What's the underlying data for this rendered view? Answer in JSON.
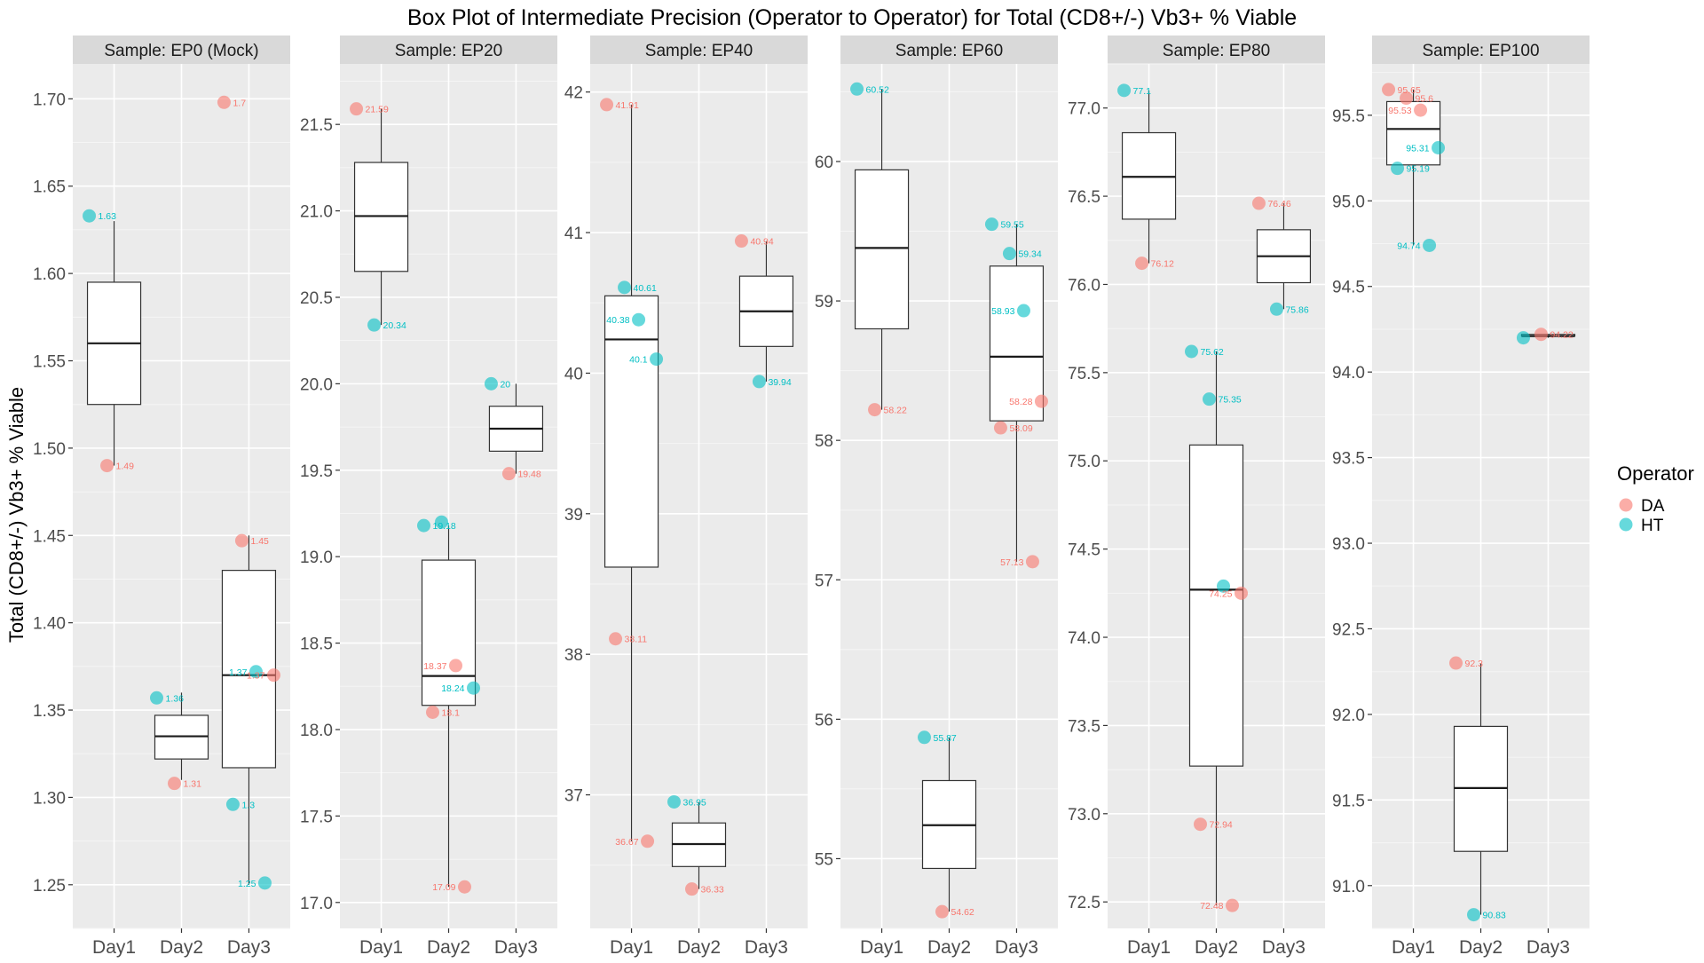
{
  "chart_data": {
    "type": "boxplot",
    "title": "Box Plot of Intermediate Precision (Operator to Operator) for Total (CD8+/-) Vb3+ % Viable",
    "ylabel": "Total (CD8+/-) Vb3+ % Viable",
    "legend": {
      "title": "Operator",
      "placement": "right",
      "entries": [
        {
          "name": "DA",
          "color": "#F8766D"
        },
        {
          "name": "HT",
          "color": "#00BFC4"
        }
      ]
    },
    "categories": [
      "Day1",
      "Day2",
      "Day3"
    ],
    "grid": true,
    "panels": [
      {
        "label": "Sample: EP0 (Mock)",
        "ylim": [
          1.225,
          1.72
        ],
        "yticks": [
          "1.25",
          "1.30",
          "1.35",
          "1.40",
          "1.45",
          "1.50",
          "1.55",
          "1.60",
          "1.65",
          "1.70"
        ],
        "boxes": [
          {
            "x": "Day1",
            "min": 1.49,
            "q1": 1.525,
            "median": 1.56,
            "q3": 1.595,
            "max": 1.63
          },
          {
            "x": "Day2",
            "min": 1.31,
            "q1": 1.322,
            "median": 1.335,
            "q3": 1.347,
            "max": 1.36
          },
          {
            "x": "Day3",
            "min": 1.25,
            "q1": 1.317,
            "median": 1.37,
            "q3": 1.43,
            "max": 1.45
          }
        ],
        "points": [
          {
            "x": "Day1",
            "op": "HT",
            "y": 1.633,
            "label": "1.63"
          },
          {
            "x": "Day1",
            "op": "DA",
            "y": 1.49,
            "label": "1.49"
          },
          {
            "x": "Day2",
            "op": "HT",
            "y": 1.357,
            "label": "1.36"
          },
          {
            "x": "Day2",
            "op": "DA",
            "y": 1.308,
            "label": "1.31"
          },
          {
            "x": "Day3",
            "op": "DA",
            "y": 1.698,
            "label": "1.7"
          },
          {
            "x": "Day3",
            "op": "DA",
            "y": 1.447,
            "label": "1.45"
          },
          {
            "x": "Day3",
            "op": "HT",
            "y": 1.372,
            "label": "1.37"
          },
          {
            "x": "Day3",
            "op": "DA",
            "y": 1.37,
            "label": "1.37"
          },
          {
            "x": "Day3",
            "op": "HT",
            "y": 1.296,
            "label": "1.3"
          },
          {
            "x": "Day3",
            "op": "HT",
            "y": 1.251,
            "label": "1.25"
          }
        ]
      },
      {
        "label": "Sample: EP20",
        "ylim": [
          16.85,
          21.85
        ],
        "yticks": [
          "17.0",
          "17.5",
          "18.0",
          "18.5",
          "19.0",
          "19.5",
          "20.0",
          "20.5",
          "21.0",
          "21.5"
        ],
        "boxes": [
          {
            "x": "Day1",
            "min": 20.34,
            "q1": 20.65,
            "median": 20.97,
            "q3": 21.28,
            "max": 21.59
          },
          {
            "x": "Day2",
            "min": 17.09,
            "q1": 18.14,
            "median": 18.31,
            "q3": 18.98,
            "max": 19.18
          },
          {
            "x": "Day3",
            "min": 19.48,
            "q1": 19.61,
            "median": 19.74,
            "q3": 19.87,
            "max": 20.0
          }
        ],
        "points": [
          {
            "x": "Day1",
            "op": "DA",
            "y": 21.59,
            "label": "21.59"
          },
          {
            "x": "Day1",
            "op": "HT",
            "y": 20.34,
            "label": "20.34"
          },
          {
            "x": "Day2",
            "op": "HT",
            "y": 19.18,
            "label": "19.18"
          },
          {
            "x": "Day2",
            "op": "HT",
            "y": 19.2,
            "label": ""
          },
          {
            "x": "Day2",
            "op": "DA",
            "y": 18.37,
            "label": "18.37"
          },
          {
            "x": "Day2",
            "op": "HT",
            "y": 18.24,
            "label": "18.24"
          },
          {
            "x": "Day2",
            "op": "DA",
            "y": 18.1,
            "label": "18.1"
          },
          {
            "x": "Day2",
            "op": "DA",
            "y": 17.09,
            "label": "17.09"
          },
          {
            "x": "Day3",
            "op": "HT",
            "y": 20.0,
            "label": "20"
          },
          {
            "x": "Day3",
            "op": "DA",
            "y": 19.48,
            "label": "19.48"
          }
        ]
      },
      {
        "label": "Sample: EP40",
        "ylim": [
          36.05,
          42.2
        ],
        "yticks": [
          "37",
          "38",
          "39",
          "40",
          "41",
          "42"
        ],
        "boxes": [
          {
            "x": "Day1",
            "min": 36.67,
            "q1": 38.62,
            "median": 40.24,
            "q3": 40.55,
            "max": 41.91
          },
          {
            "x": "Day2",
            "min": 36.33,
            "q1": 36.49,
            "median": 36.65,
            "q3": 36.8,
            "max": 36.95
          },
          {
            "x": "Day3",
            "min": 39.94,
            "q1": 40.19,
            "median": 40.44,
            "q3": 40.69,
            "max": 40.94
          }
        ],
        "points": [
          {
            "x": "Day1",
            "op": "DA",
            "y": 41.91,
            "label": "41.91"
          },
          {
            "x": "Day1",
            "op": "HT",
            "y": 40.61,
            "label": "40.61"
          },
          {
            "x": "Day1",
            "op": "HT",
            "y": 40.38,
            "label": "40.38"
          },
          {
            "x": "Day1",
            "op": "HT",
            "y": 40.1,
            "label": "40.1"
          },
          {
            "x": "Day1",
            "op": "DA",
            "y": 38.11,
            "label": "38.11"
          },
          {
            "x": "Day1",
            "op": "DA",
            "y": 36.67,
            "label": "36.67"
          },
          {
            "x": "Day2",
            "op": "HT",
            "y": 36.95,
            "label": "36.95"
          },
          {
            "x": "Day2",
            "op": "DA",
            "y": 36.33,
            "label": "36.33"
          },
          {
            "x": "Day3",
            "op": "DA",
            "y": 40.94,
            "label": "40.94"
          },
          {
            "x": "Day3",
            "op": "HT",
            "y": 39.94,
            "label": "39.94"
          }
        ]
      },
      {
        "label": "Sample: EP60",
        "ylim": [
          54.5,
          60.7
        ],
        "yticks": [
          "55",
          "56",
          "57",
          "58",
          "59",
          "60"
        ],
        "boxes": [
          {
            "x": "Day1",
            "min": 58.22,
            "q1": 58.8,
            "median": 59.38,
            "q3": 59.94,
            "max": 60.52
          },
          {
            "x": "Day2",
            "min": 54.62,
            "q1": 54.93,
            "median": 55.24,
            "q3": 55.56,
            "max": 55.87
          },
          {
            "x": "Day3",
            "min": 57.13,
            "q1": 58.14,
            "median": 58.6,
            "q3": 59.25,
            "max": 59.55
          }
        ],
        "points": [
          {
            "x": "Day1",
            "op": "HT",
            "y": 60.52,
            "label": "60.52"
          },
          {
            "x": "Day1",
            "op": "DA",
            "y": 58.22,
            "label": "58.22"
          },
          {
            "x": "Day2",
            "op": "HT",
            "y": 55.87,
            "label": "55.87"
          },
          {
            "x": "Day2",
            "op": "DA",
            "y": 54.62,
            "label": "54.62"
          },
          {
            "x": "Day3",
            "op": "HT",
            "y": 59.55,
            "label": "59.55"
          },
          {
            "x": "Day3",
            "op": "HT",
            "y": 59.34,
            "label": "59.34"
          },
          {
            "x": "Day3",
            "op": "HT",
            "y": 58.93,
            "label": "58.93"
          },
          {
            "x": "Day3",
            "op": "DA",
            "y": 58.28,
            "label": "58.28"
          },
          {
            "x": "Day3",
            "op": "DA",
            "y": 58.09,
            "label": "58.09"
          },
          {
            "x": "Day3",
            "op": "DA",
            "y": 57.13,
            "label": "57.13"
          }
        ]
      },
      {
        "label": "Sample: EP80",
        "ylim": [
          72.35,
          77.25
        ],
        "yticks": [
          "72.5",
          "73.0",
          "73.5",
          "74.0",
          "74.5",
          "75.0",
          "75.5",
          "76.0",
          "76.5",
          "77.0"
        ],
        "boxes": [
          {
            "x": "Day1",
            "min": 76.12,
            "q1": 76.37,
            "median": 76.61,
            "q3": 76.86,
            "max": 77.1
          },
          {
            "x": "Day2",
            "min": 72.48,
            "q1": 73.27,
            "median": 74.27,
            "q3": 75.09,
            "max": 75.62
          },
          {
            "x": "Day3",
            "min": 75.86,
            "q1": 76.01,
            "median": 76.16,
            "q3": 76.31,
            "max": 76.46
          }
        ],
        "points": [
          {
            "x": "Day1",
            "op": "HT",
            "y": 77.1,
            "label": "77.1"
          },
          {
            "x": "Day1",
            "op": "DA",
            "y": 76.12,
            "label": "76.12"
          },
          {
            "x": "Day2",
            "op": "HT",
            "y": 75.62,
            "label": "75.62"
          },
          {
            "x": "Day2",
            "op": "HT",
            "y": 75.35,
            "label": "75.35"
          },
          {
            "x": "Day2",
            "op": "HT",
            "y": 74.29,
            "label": ""
          },
          {
            "x": "Day2",
            "op": "DA",
            "y": 74.25,
            "label": "74.25"
          },
          {
            "x": "Day2",
            "op": "DA",
            "y": 72.94,
            "label": "72.94"
          },
          {
            "x": "Day2",
            "op": "DA",
            "y": 72.48,
            "label": "72.48"
          },
          {
            "x": "Day3",
            "op": "DA",
            "y": 76.46,
            "label": "76.46"
          },
          {
            "x": "Day3",
            "op": "HT",
            "y": 75.86,
            "label": "75.86"
          }
        ]
      },
      {
        "label": "Sample: EP100",
        "ylim": [
          90.75,
          95.8
        ],
        "yticks": [
          "91.0",
          "91.5",
          "92.0",
          "92.5",
          "93.0",
          "93.5",
          "94.0",
          "94.5",
          "95.0",
          "95.5"
        ],
        "boxes": [
          {
            "x": "Day1",
            "min": 94.74,
            "q1": 95.21,
            "median": 95.42,
            "q3": 95.58,
            "max": 95.65
          },
          {
            "x": "Day2",
            "min": 90.83,
            "q1": 91.2,
            "median": 91.57,
            "q3": 91.93,
            "max": 92.3
          },
          {
            "x": "Day3",
            "min": 94.2,
            "q1": 94.21,
            "median": 94.21,
            "q3": 94.22,
            "max": 94.22
          }
        ],
        "points": [
          {
            "x": "Day1",
            "op": "DA",
            "y": 95.65,
            "label": "95.65"
          },
          {
            "x": "Day1",
            "op": "DA",
            "y": 95.6,
            "label": "95.6"
          },
          {
            "x": "Day1",
            "op": "DA",
            "y": 95.53,
            "label": "95.53"
          },
          {
            "x": "Day1",
            "op": "HT",
            "y": 95.31,
            "label": "95.31"
          },
          {
            "x": "Day1",
            "op": "HT",
            "y": 95.19,
            "label": "95.19"
          },
          {
            "x": "Day1",
            "op": "HT",
            "y": 94.74,
            "label": "94.74"
          },
          {
            "x": "Day2",
            "op": "DA",
            "y": 92.3,
            "label": "92.3"
          },
          {
            "x": "Day2",
            "op": "HT",
            "y": 90.83,
            "label": "90.83"
          },
          {
            "x": "Day3",
            "op": "HT",
            "y": 94.2,
            "label": ""
          },
          {
            "x": "Day3",
            "op": "DA",
            "y": 94.22,
            "label": "94.22"
          }
        ]
      }
    ]
  }
}
